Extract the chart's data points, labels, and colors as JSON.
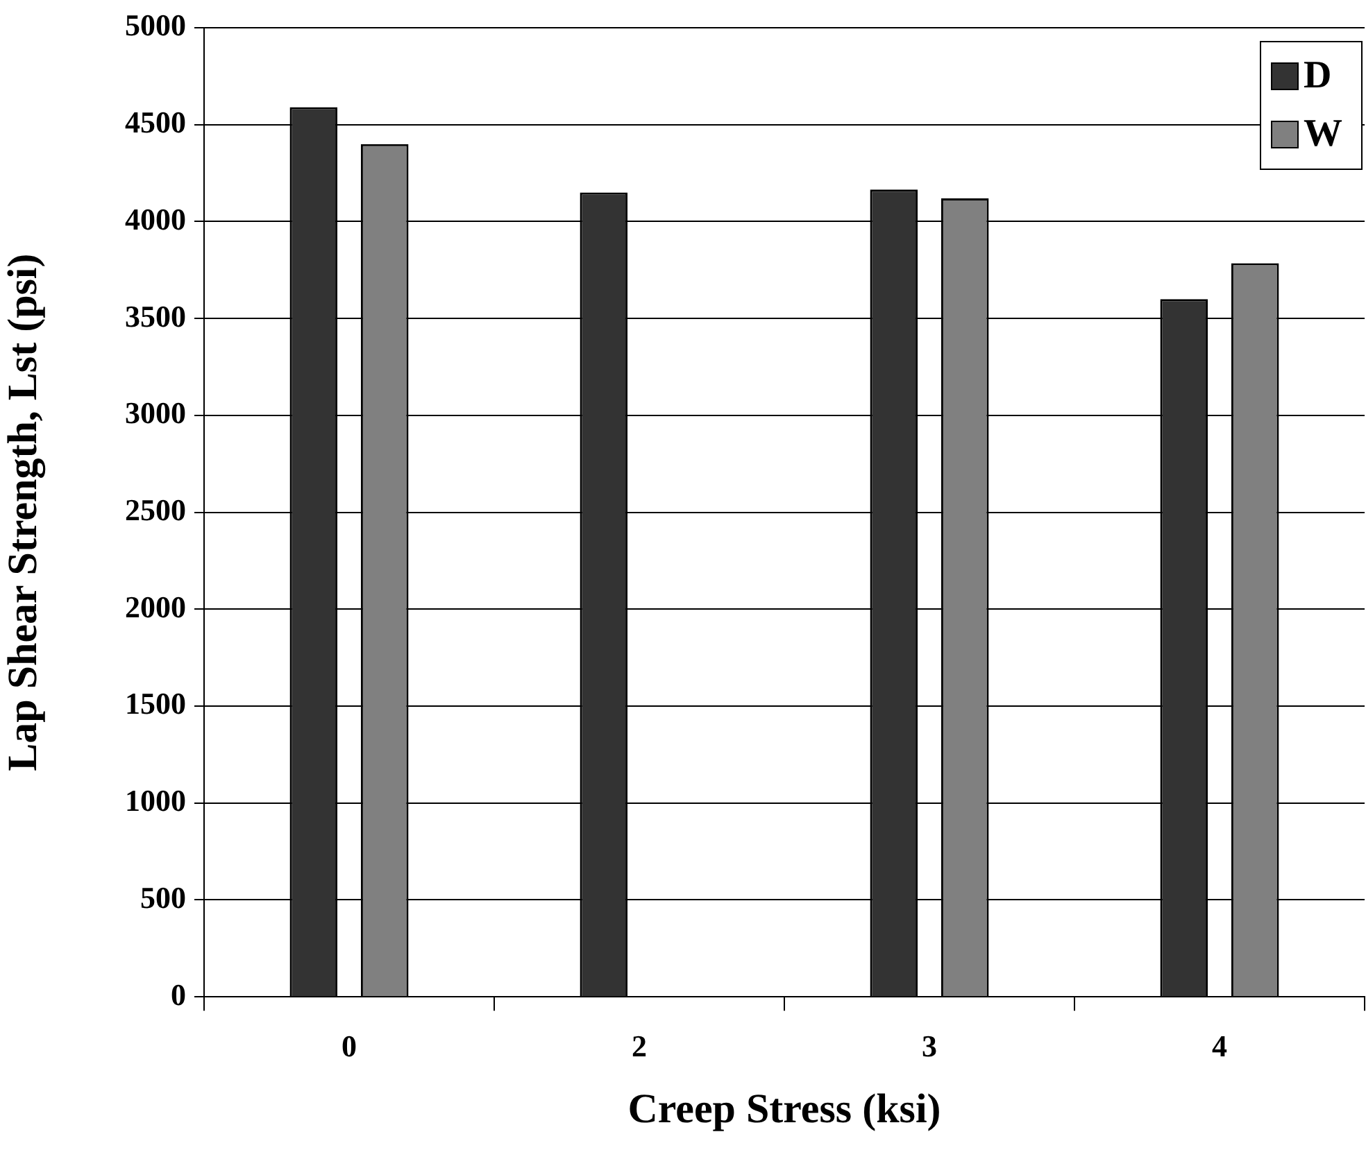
{
  "chart_data": {
    "type": "bar",
    "xlabel": "Creep Stress (ksi)",
    "ylabel": "Lap Shear Strength, Lst (psi)",
    "categories": [
      "0",
      "2",
      "3",
      "4"
    ],
    "series": [
      {
        "name": "D",
        "color": "#333333",
        "values": [
          4590,
          4150,
          4165,
          3600
        ]
      },
      {
        "name": "W",
        "color": "#808080",
        "values": [
          4400,
          null,
          4120,
          3785
        ]
      }
    ],
    "ylim": [
      0,
      5000
    ],
    "yticks": [
      0,
      500,
      1000,
      1500,
      2000,
      2500,
      3000,
      3500,
      4000,
      4500,
      5000
    ],
    "grid": "y",
    "legend": "top right"
  }
}
